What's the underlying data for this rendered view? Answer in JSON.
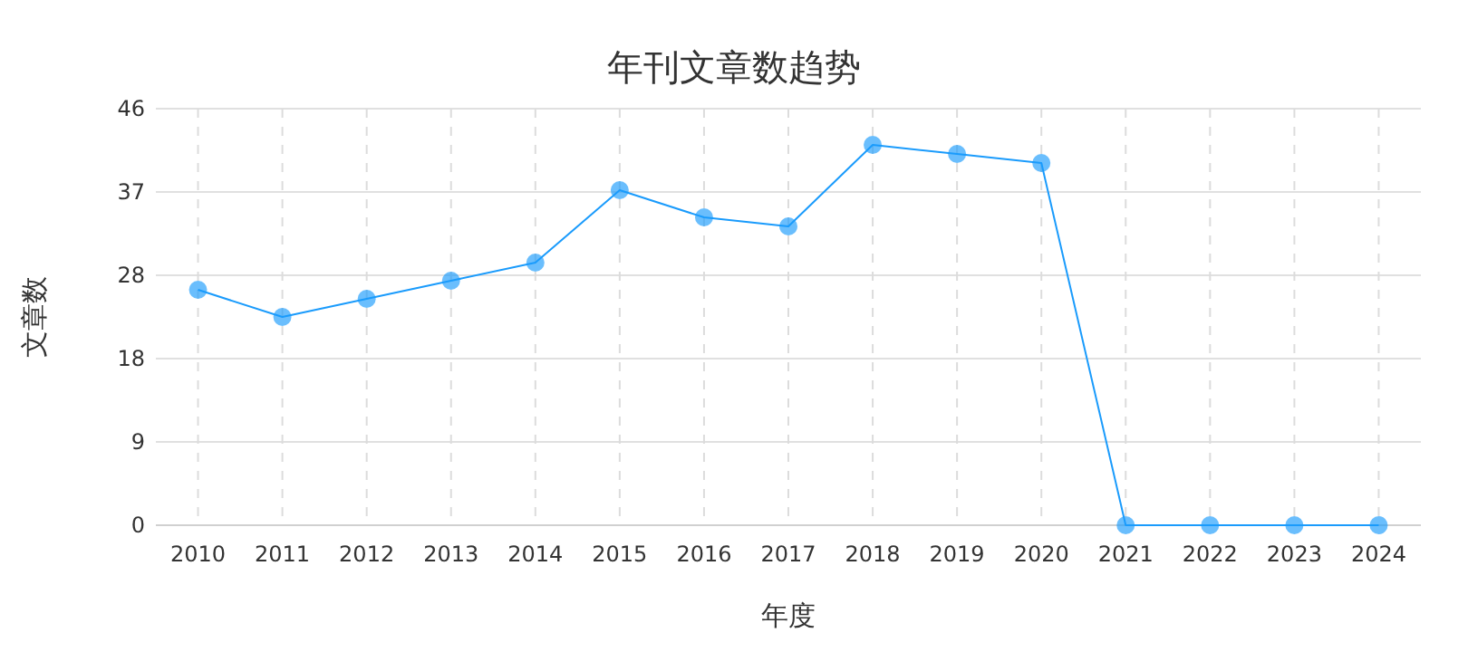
{
  "chart_data": {
    "type": "line",
    "title": "年刊文章数趋势",
    "xlabel": "年度",
    "ylabel": "文章数",
    "categories": [
      "2010",
      "2011",
      "2012",
      "2013",
      "2014",
      "2015",
      "2016",
      "2017",
      "2018",
      "2019",
      "2020",
      "2021",
      "2022",
      "2023",
      "2024"
    ],
    "series": [
      {
        "color": "#1a9bfc",
        "values": [
          26,
          23,
          25,
          27,
          29,
          37,
          34,
          33,
          42,
          41,
          40,
          0,
          0,
          0,
          0
        ]
      }
    ],
    "ylim": [
      0,
      46
    ],
    "yticks": [
      0,
      {
        "value": 9.2,
        "label": "9"
      },
      {
        "value": 18.4,
        "label": "18"
      },
      {
        "value": 27.6,
        "label": "28"
      },
      {
        "value": 36.8,
        "label": "37"
      },
      46
    ],
    "grid": true,
    "marker": "circle",
    "line_style": "solid"
  }
}
